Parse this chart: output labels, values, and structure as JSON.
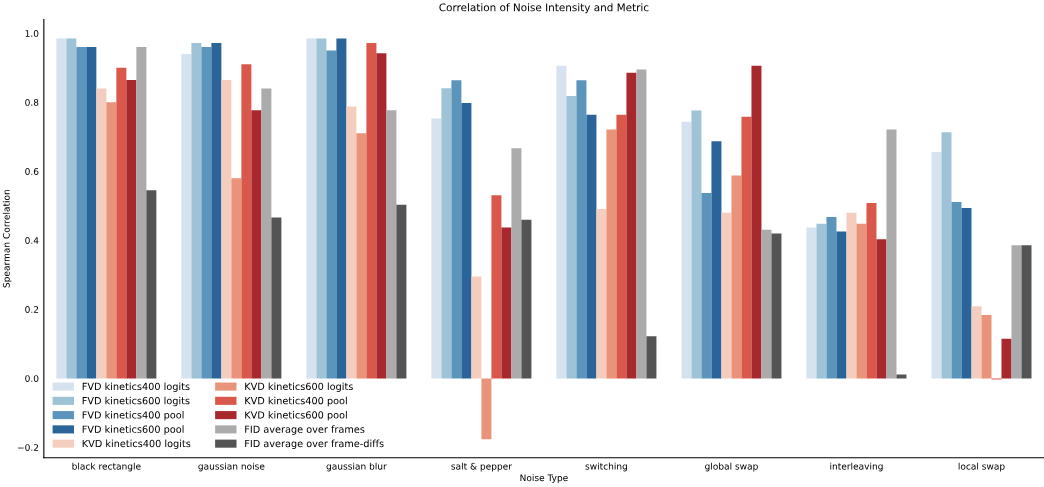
{
  "chart_data": {
    "type": "bar",
    "title": "Correlation of Noise Intensity and Metric",
    "xlabel": "Noise Type",
    "ylabel": "Spearman Correlation",
    "categories": [
      "black rectangle",
      "gaussian noise",
      "gaussian blur",
      "salt & pepper",
      "switching",
      "global swap",
      "interleaving",
      "local swap"
    ],
    "ylim": [
      -0.23,
      1.04
    ],
    "yticks": [
      {
        "value": -0.2,
        "label": "−0.2"
      },
      {
        "value": 0.0,
        "label": "0.0"
      },
      {
        "value": 0.2,
        "label": "0.2"
      },
      {
        "value": 0.4,
        "label": "0.4"
      },
      {
        "value": 0.6,
        "label": "0.6"
      },
      {
        "value": 0.8,
        "label": "0.8"
      },
      {
        "value": 1.0,
        "label": "1.0"
      }
    ],
    "grid": false,
    "legend": "bottom left",
    "series": [
      {
        "name": "FVD kinetics400 logits",
        "color": "#d6e2ef",
        "values": [
          0.985,
          0.94,
          0.985,
          0.753,
          0.906,
          0.744,
          0.437,
          0.656
        ]
      },
      {
        "name": "FVD kinetics600 logits",
        "color": "#9ec3d6",
        "values": [
          0.985,
          0.972,
          0.985,
          0.841,
          0.818,
          0.776,
          0.448,
          0.713
        ]
      },
      {
        "name": "FVD kinetics400 pool",
        "color": "#5b95bc",
        "values": [
          0.96,
          0.96,
          0.95,
          0.864,
          0.864,
          0.537,
          0.468,
          0.511
        ]
      },
      {
        "name": "FVD kinetics600 pool",
        "color": "#2a6499",
        "values": [
          0.96,
          0.972,
          0.985,
          0.798,
          0.764,
          0.687,
          0.426,
          0.494
        ]
      },
      {
        "name": "KVD kinetics400 logits",
        "color": "#f4cdbf",
        "values": [
          0.84,
          0.865,
          0.788,
          0.295,
          0.491,
          0.48,
          0.48,
          0.209
        ]
      },
      {
        "name": "KVD kinetics600 logits",
        "color": "#e9937a",
        "values": [
          0.8,
          0.58,
          0.71,
          -0.176,
          0.721,
          0.588,
          0.448,
          0.184
        ]
      },
      {
        "name": "KVD kinetics400 pool",
        "color": "#d9584b",
        "values": [
          0.9,
          0.91,
          0.972,
          0.531,
          0.764,
          0.758,
          0.508,
          -0.003
        ]
      },
      {
        "name": "KVD kinetics600 pool",
        "color": "#a7282d",
        "values": [
          0.865,
          0.777,
          0.942,
          0.437,
          0.886,
          0.906,
          0.403,
          0.115
        ]
      },
      {
        "name": "FID average over frames",
        "color": "#ababab",
        "values": [
          0.96,
          0.84,
          0.777,
          0.667,
          0.895,
          0.431,
          0.721,
          0.386
        ]
      },
      {
        "name": "FID average over frame-diffs",
        "color": "#545454",
        "values": [
          0.545,
          0.466,
          0.503,
          0.46,
          0.122,
          0.42,
          0.011,
          0.386
        ]
      }
    ]
  }
}
